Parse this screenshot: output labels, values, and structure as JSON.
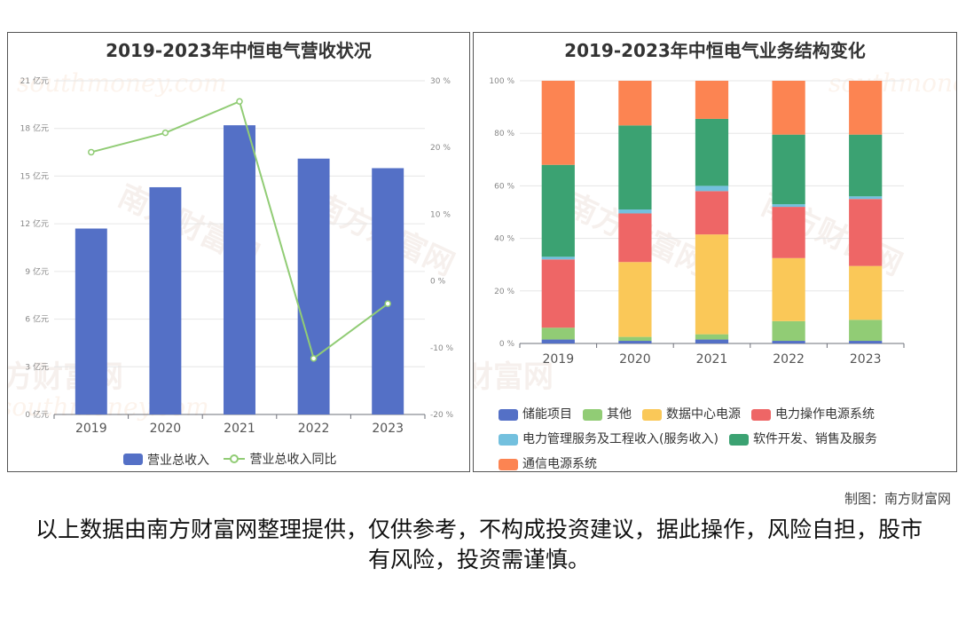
{
  "left_chart": {
    "title": "2019-2023年中恒电气营收状况",
    "legend": {
      "bar_label": "营业总收入",
      "line_label": "营业总收入同比"
    },
    "y_left_ticks": [
      "0 亿元",
      "3 亿元",
      "6 亿元",
      "9 亿元",
      "12 亿元",
      "15 亿元",
      "18 亿元",
      "21 亿元"
    ],
    "y_right_ticks": [
      "-20 %",
      "-10 %",
      "0 %",
      "10 %",
      "20 %",
      "30 %"
    ]
  },
  "right_chart": {
    "title": "2019-2023年中恒电气业务结构变化",
    "y_ticks": [
      "0 %",
      "20 %",
      "40 %",
      "60 %",
      "80 %",
      "100 %"
    ]
  },
  "watermark": {
    "cn": "南方财富网",
    "en": "southmoney.com"
  },
  "footer": {
    "credit": "制图：南方财富网",
    "disclaimer": "以上数据由南方财富网整理提供，仅供参考，不构成投资建议，据此操作，风险自担，股市有风险，投资需谨慎。"
  },
  "colors": {
    "bar": "#5470c6",
    "line": "#91cc75"
  },
  "chart_data": [
    {
      "type": "bar",
      "title": "2019-2023年中恒电气营收状况",
      "categories": [
        "2019",
        "2020",
        "2021",
        "2022",
        "2023"
      ],
      "series": [
        {
          "name": "营业总收入",
          "type": "bar",
          "axis": "left",
          "unit": "亿元",
          "values": [
            11.7,
            14.3,
            18.2,
            16.1,
            15.5
          ]
        },
        {
          "name": "营业总收入同比",
          "type": "line",
          "axis": "right",
          "unit": "%",
          "values": [
            19.3,
            22.2,
            26.9,
            -11.6,
            -3.4
          ]
        }
      ],
      "ylim_left": [
        0,
        21
      ],
      "ylim_right": [
        -20,
        30
      ],
      "grid": true,
      "legend_position": "bottom"
    },
    {
      "type": "bar",
      "stacked": true,
      "title": "2019-2023年中恒电气业务结构变化",
      "categories": [
        "2019",
        "2020",
        "2021",
        "2022",
        "2023"
      ],
      "unit": "%",
      "series": [
        {
          "name": "储能项目",
          "color": "#5470c6",
          "values": [
            1.5,
            1.0,
            1.5,
            1.0,
            1.0
          ]
        },
        {
          "name": "其他",
          "color": "#91cc75",
          "values": [
            4.5,
            1.5,
            2.0,
            7.5,
            8.0
          ]
        },
        {
          "name": "数据中心电源",
          "color": "#fac858",
          "values": [
            0.0,
            28.5,
            38.0,
            24.0,
            20.5
          ]
        },
        {
          "name": "电力操作电源系统",
          "color": "#ee6666",
          "values": [
            26.0,
            18.5,
            16.5,
            19.5,
            25.5
          ]
        },
        {
          "name": "电力管理服务及工程收入(服务收入)",
          "color": "#73c0de",
          "values": [
            1.0,
            1.5,
            2.0,
            1.0,
            1.0
          ]
        },
        {
          "name": "软件开发、销售及服务",
          "color": "#3ba272",
          "values": [
            35.0,
            32.0,
            25.5,
            26.5,
            23.5
          ]
        },
        {
          "name": "通信电源系统",
          "color": "#fc8452",
          "values": [
            32.0,
            17.0,
            14.5,
            20.5,
            20.5
          ]
        }
      ],
      "ylim": [
        0,
        100
      ],
      "grid": true,
      "legend_position": "bottom"
    }
  ]
}
